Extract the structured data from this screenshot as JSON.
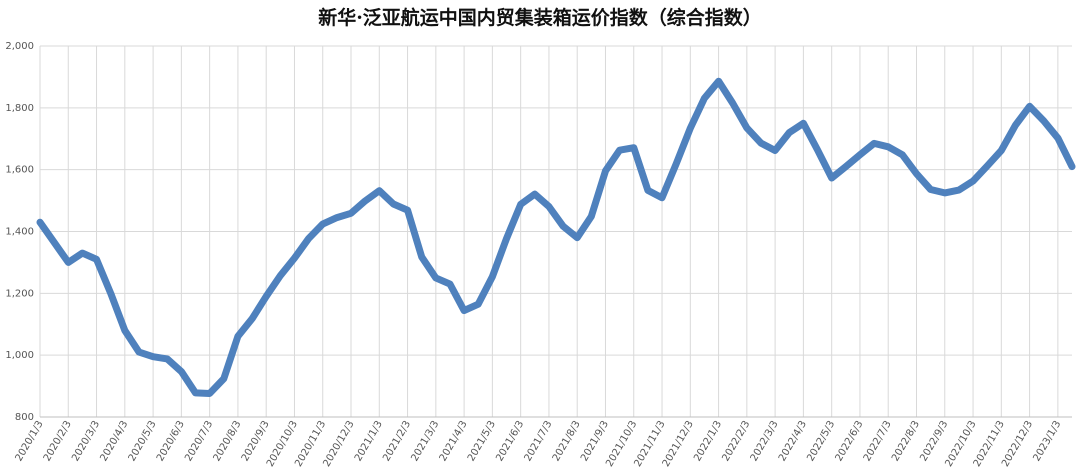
{
  "chart_data": {
    "type": "line",
    "title": "新华·泛亚航运中国内贸集装箱运价指数（综合指数）",
    "categories": [
      "2020/1/3",
      null,
      "2020/2/3",
      null,
      "2020/3/3",
      null,
      "2020/4/3",
      null,
      "2020/5/3",
      null,
      "2020/6/3",
      null,
      "2020/7/3",
      null,
      "2020/8/3",
      null,
      "2020/9/3",
      null,
      "2020/10/3",
      null,
      "2020/11/3",
      null,
      "2020/12/3",
      null,
      "2021/1/3",
      null,
      "2021/2/3",
      null,
      "2021/3/3",
      null,
      "2021/4/3",
      null,
      "2021/5/3",
      null,
      "2021/6/3",
      null,
      "2021/7/3",
      null,
      "2021/8/3",
      null,
      "2021/9/3",
      null,
      "2021/10/3",
      null,
      "2021/11/3",
      null,
      "2021/12/3",
      null,
      "2022/1/3",
      null,
      "2022/2/3",
      null,
      "2022/3/3",
      null,
      "2022/4/3",
      null,
      "2022/5/3",
      null,
      "2022/6/3",
      null,
      "2022/7/3",
      null,
      "2022/8/3",
      null,
      "2022/9/3",
      null,
      "2022/10/3",
      null,
      "2022/11/3",
      null,
      "2022/12/3",
      null,
      "2023/1/3",
      null
    ],
    "values": [
      1430,
      1365,
      1300,
      1330,
      1310,
      1200,
      1080,
      1010,
      995,
      988,
      947,
      878,
      876,
      924,
      1061,
      1118,
      1190,
      1257,
      1314,
      1377,
      1424,
      1445,
      1459,
      1499,
      1532,
      1489,
      1469,
      1318,
      1250,
      1230,
      1144,
      1165,
      1254,
      1377,
      1488,
      1521,
      1481,
      1417,
      1380,
      1449,
      1596,
      1663,
      1671,
      1533,
      1509,
      1619,
      1734,
      1831,
      1886,
      1815,
      1735,
      1686,
      1662,
      1720,
      1750,
      1664,
      1573,
      1610,
      1648,
      1685,
      1674,
      1648,
      1587,
      1536,
      1525,
      1534,
      1563,
      1612,
      1662,
      1744,
      1805,
      1758,
      1702,
      1610
    ],
    "color": "#4f81bd",
    "ylim": [
      800,
      2000
    ],
    "yticks": [
      {
        "value": 800,
        "label": "800"
      },
      {
        "value": 1000,
        "label": "1,000"
      },
      {
        "value": 1200,
        "label": "1,200"
      },
      {
        "value": 1400,
        "label": "1,400"
      },
      {
        "value": 1600,
        "label": "1,600"
      },
      {
        "value": 1800,
        "label": "1,800"
      },
      {
        "value": 2000,
        "label": "2,000"
      }
    ],
    "grid": true
  }
}
